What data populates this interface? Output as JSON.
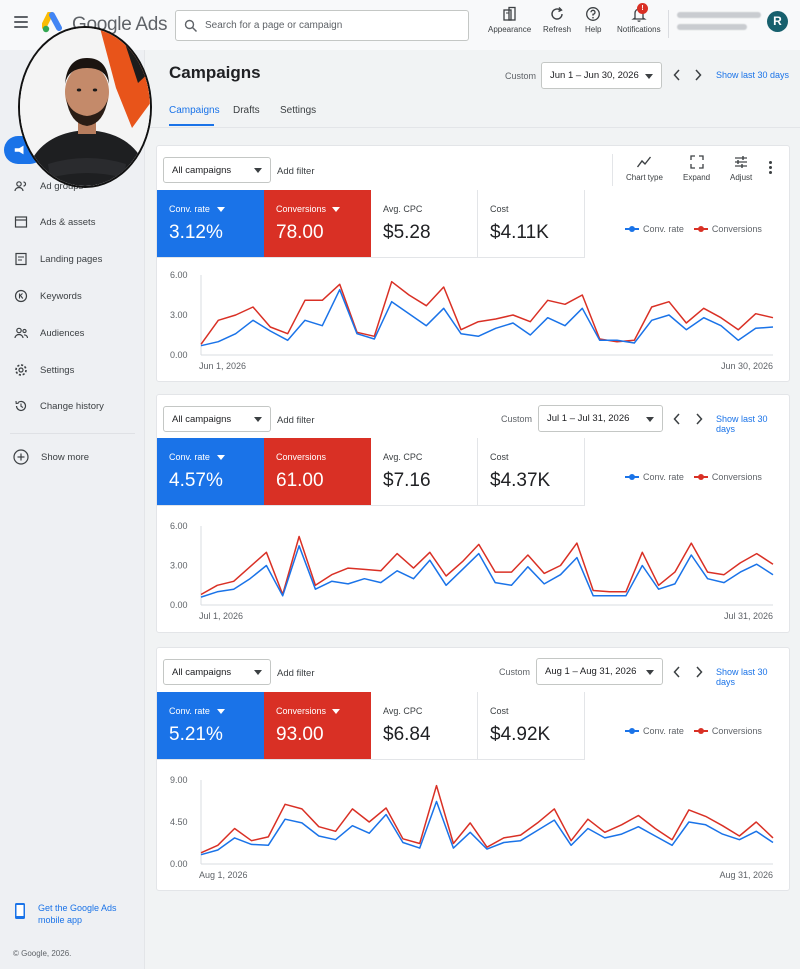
{
  "topbar": {
    "app_name": "Google Ads",
    "search_placeholder": "Search for a page or campaign",
    "tools": [
      {
        "label": "Appearance",
        "icon": "appearance-icon"
      },
      {
        "label": "Refresh",
        "icon": "refresh-icon"
      },
      {
        "label": "Help",
        "icon": "help-icon"
      },
      {
        "label": "Notifications",
        "icon": "bell-icon",
        "badge": "!"
      }
    ],
    "avatar_letter": "R"
  },
  "sidebar": {
    "items": [
      {
        "label": "Ad groups",
        "icon": "ad-groups-icon"
      },
      {
        "label": "Ads & assets",
        "icon": "ads-assets-icon"
      },
      {
        "label": "Landing pages",
        "icon": "landing-pages-icon"
      },
      {
        "label": "Keywords",
        "icon": "keywords-icon"
      },
      {
        "label": "Audiences",
        "icon": "audiences-icon"
      },
      {
        "label": "Settings",
        "icon": "settings-icon"
      },
      {
        "label": "Change history",
        "icon": "history-icon"
      }
    ],
    "show_more": "Show more",
    "app_link_line1": "Get the Google Ads",
    "app_link_line2": "mobile app",
    "footer": "© Google, 2026."
  },
  "page": {
    "title": "Campaigns",
    "tabs": [
      "Campaigns",
      "Drafts",
      "Settings"
    ],
    "custom_label": "Custom",
    "date_range": "Jun 1 – Jun 30, 2026",
    "show_last": "Show last 30 days"
  },
  "toolbar": {
    "chart_type": "Chart type",
    "expand": "Expand",
    "adjust": "Adjust"
  },
  "cards": [
    {
      "campaign_select": "All campaigns",
      "add_filter": "Add filter",
      "custom_label": "",
      "date_range": "",
      "show_last": "",
      "metrics": {
        "conv_rate_label": "Conv. rate",
        "conv_rate": "3.12%",
        "conversions_label": "Conversions",
        "conversions": "78.00",
        "avg_cpc_label": "Avg. CPC",
        "avg_cpc": "$5.28",
        "cost_label": "Cost",
        "cost": "$4.11K"
      },
      "legend": [
        "Conv. rate",
        "Conversions"
      ]
    },
    {
      "campaign_select": "All campaigns",
      "add_filter": "Add filter",
      "custom_label": "Custom",
      "date_range": "Jul 1 – Jul 31, 2026",
      "show_last": "Show last 30 days",
      "metrics": {
        "conv_rate_label": "Conv. rate",
        "conv_rate": "4.57%",
        "conversions_label": "Conversions",
        "conversions": "61.00",
        "avg_cpc_label": "Avg. CPC",
        "avg_cpc": "$7.16",
        "cost_label": "Cost",
        "cost": "$4.37K"
      },
      "legend": [
        "Conv. rate",
        "Conversions"
      ]
    },
    {
      "campaign_select": "All campaigns",
      "add_filter": "Add filter",
      "custom_label": "Custom",
      "date_range": "Aug 1 – Aug 31, 2026",
      "show_last": "Show last 30 days",
      "metrics": {
        "conv_rate_label": "Conv. rate",
        "conv_rate": "5.21%",
        "conversions_label": "Conversions",
        "conversions": "93.00",
        "avg_cpc_label": "Avg. CPC",
        "avg_cpc": "$6.84",
        "cost_label": "Cost",
        "cost": "$4.92K"
      },
      "legend": [
        "Conv. rate",
        "Conversions"
      ]
    }
  ],
  "colors": {
    "conv_rate": "#1a73e8",
    "conversions": "#d93025",
    "accent": "#1a73e8"
  },
  "chart_data": [
    {
      "type": "line",
      "yticks": [
        "6.00",
        "3.00",
        "0.00"
      ],
      "ylim": [
        0,
        6
      ],
      "x_start_label": "Jun 1, 2026",
      "x_end_label": "Jun 30, 2026",
      "grid": false,
      "legend": "top-right",
      "series": [
        {
          "name": "Conv. rate",
          "color": "#1a73e8",
          "values": [
            0.7,
            1.0,
            1.6,
            2.6,
            1.8,
            1.1,
            2.6,
            2.2,
            4.9,
            1.6,
            1.2,
            4.0,
            3.1,
            2.2,
            3.5,
            1.6,
            1.4,
            2.0,
            2.4,
            1.5,
            2.8,
            2.2,
            3.5,
            1.1,
            1.1,
            0.9,
            2.6,
            3.0,
            1.9,
            2.8,
            2.2,
            1.1,
            2.0,
            2.1
          ]
        },
        {
          "name": "Conversions",
          "color": "#d93025",
          "values": [
            0.8,
            2.6,
            3.0,
            3.6,
            2.1,
            1.6,
            4.1,
            4.1,
            5.3,
            1.7,
            1.4,
            5.5,
            4.5,
            3.7,
            5.1,
            1.9,
            2.5,
            2.7,
            3.0,
            2.5,
            4.1,
            3.8,
            4.5,
            1.2,
            1.0,
            1.1,
            3.6,
            4.0,
            2.4,
            3.5,
            2.8,
            1.9,
            3.1,
            2.8
          ]
        }
      ]
    },
    {
      "type": "line",
      "yticks": [
        "6.00",
        "3.00",
        "0.00"
      ],
      "ylim": [
        0,
        6
      ],
      "x_start_label": "Jul 1, 2026",
      "x_end_label": "Jul 31, 2026",
      "grid": false,
      "legend": "top-right",
      "series": [
        {
          "name": "Conv. rate",
          "color": "#1a73e8",
          "values": [
            0.6,
            1.0,
            1.2,
            2.0,
            3.0,
            0.7,
            4.5,
            1.2,
            1.8,
            1.6,
            2.0,
            1.7,
            2.6,
            2.0,
            3.4,
            1.5,
            2.7,
            3.9,
            1.7,
            1.5,
            2.9,
            1.6,
            2.3,
            3.6,
            0.7,
            0.7,
            0.7,
            3.0,
            1.2,
            1.6,
            3.8,
            2.0,
            1.7,
            2.5,
            3.1,
            2.3
          ]
        },
        {
          "name": "Conversions",
          "color": "#d93025",
          "values": [
            0.8,
            1.5,
            1.8,
            2.9,
            4.0,
            0.8,
            5.2,
            1.5,
            2.3,
            2.8,
            2.7,
            2.6,
            3.9,
            2.8,
            4.0,
            2.2,
            3.3,
            4.6,
            2.5,
            2.5,
            3.8,
            2.4,
            3.0,
            4.7,
            1.1,
            1.0,
            1.0,
            4.0,
            1.5,
            2.5,
            4.7,
            2.5,
            2.3,
            3.2,
            3.9,
            3.1
          ]
        }
      ]
    },
    {
      "type": "line",
      "yticks": [
        "9.00",
        "4.50",
        "0.00"
      ],
      "ylim": [
        0,
        9
      ],
      "x_start_label": "Aug 1, 2026",
      "x_end_label": "Aug 31, 2026",
      "grid": false,
      "legend": "top-right",
      "series": [
        {
          "name": "Conv. rate",
          "color": "#1a73e8",
          "values": [
            1.0,
            1.5,
            2.8,
            2.1,
            2.0,
            4.8,
            4.4,
            3.0,
            2.6,
            4.1,
            3.3,
            5.3,
            2.3,
            1.7,
            6.7,
            1.7,
            3.4,
            1.6,
            2.3,
            2.5,
            3.6,
            4.7,
            2.0,
            3.8,
            2.8,
            3.2,
            4.0,
            3.0,
            2.0,
            4.5,
            4.2,
            3.2,
            2.6,
            3.5,
            2.3
          ]
        },
        {
          "name": "Conversions",
          "color": "#d93025",
          "values": [
            1.2,
            2.0,
            3.8,
            2.5,
            2.9,
            6.4,
            5.9,
            4.0,
            3.5,
            5.9,
            4.5,
            6.0,
            2.7,
            2.2,
            8.4,
            2.2,
            4.4,
            1.8,
            2.8,
            3.1,
            4.4,
            5.9,
            2.5,
            4.8,
            3.4,
            4.2,
            5.2,
            3.8,
            2.6,
            5.8,
            5.1,
            4.1,
            3.0,
            4.5,
            2.8
          ]
        }
      ]
    }
  ]
}
